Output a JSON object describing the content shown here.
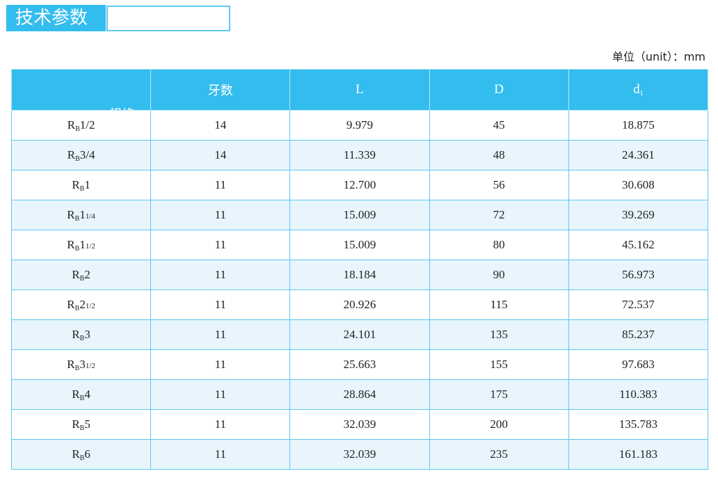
{
  "title": "技术参数",
  "unit": "单位（unit）：mm",
  "headers": {
    "spec": "规格",
    "teeth": "牙数",
    "L": "L",
    "D": "D",
    "d1_base": "d",
    "d1_sub": "1"
  },
  "rows": [
    {
      "r": "R",
      "b": "B",
      "n": "1/2",
      "f": "",
      "teeth": "14",
      "L": "9.979",
      "D": "45",
      "d1": "18.875"
    },
    {
      "r": "R",
      "b": "B",
      "n": "3/4",
      "f": "",
      "teeth": "14",
      "L": "11.339",
      "D": "48",
      "d1": "24.361"
    },
    {
      "r": "R",
      "b": "B",
      "n": "1",
      "f": "",
      "teeth": "11",
      "L": "12.700",
      "D": "56",
      "d1": "30.608"
    },
    {
      "r": "R",
      "b": "B",
      "n": "1",
      "f": "1/4",
      "teeth": "11",
      "L": "15.009",
      "D": "72",
      "d1": "39.269"
    },
    {
      "r": "R",
      "b": "B",
      "n": "1",
      "f": "1/2",
      "teeth": "11",
      "L": "15.009",
      "D": "80",
      "d1": "45.162"
    },
    {
      "r": "R",
      "b": "B",
      "n": "2",
      "f": "",
      "teeth": "11",
      "L": "18.184",
      "D": "90",
      "d1": "56.973"
    },
    {
      "r": "R",
      "b": "B",
      "n": "2",
      "f": "1/2",
      "teeth": "11",
      "L": "20.926",
      "D": "115",
      "d1": "72.537"
    },
    {
      "r": "R",
      "b": "B",
      "n": "3",
      "f": "",
      "teeth": "11",
      "L": "24.101",
      "D": "135",
      "d1": "85.237"
    },
    {
      "r": "R",
      "b": "B",
      "n": "3",
      "f": "1/2",
      "teeth": "11",
      "L": "25.663",
      "D": "155",
      "d1": "97.683"
    },
    {
      "r": "R",
      "b": "B",
      "n": "4",
      "f": "",
      "teeth": "11",
      "L": "28.864",
      "D": "175",
      "d1": "110.383"
    },
    {
      "r": "R",
      "b": "B",
      "n": "5",
      "f": "",
      "teeth": "11",
      "L": "32.039",
      "D": "200",
      "d1": "135.783"
    },
    {
      "r": "R",
      "b": "B",
      "n": "6",
      "f": "",
      "teeth": "11",
      "L": "32.039",
      "D": "235",
      "d1": "161.183"
    }
  ],
  "colors": {
    "accent": "#33bdee",
    "alt_row": "#e8f5fd",
    "border": "#5cc8f0"
  }
}
